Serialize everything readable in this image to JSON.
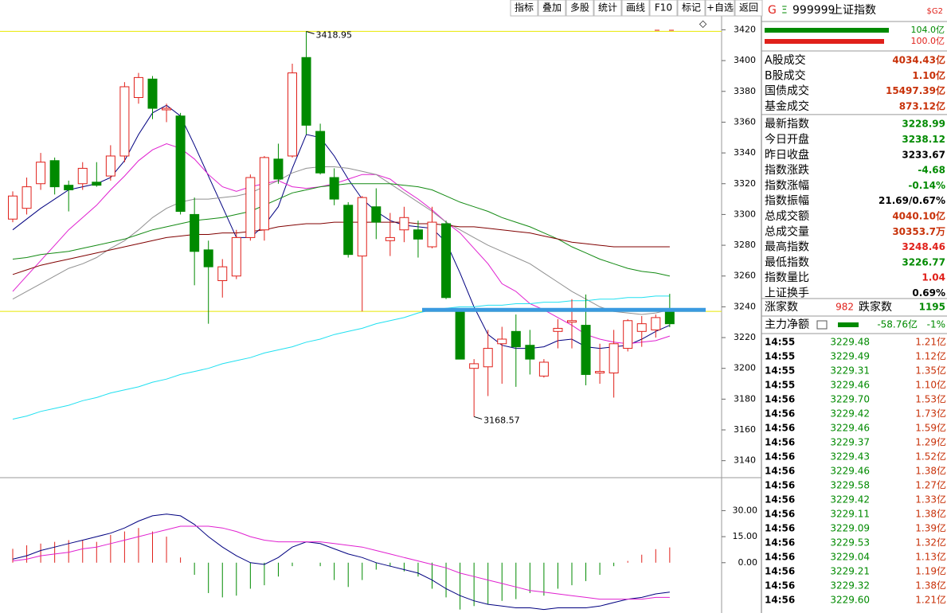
{
  "toolbar": [
    "指标",
    "叠加",
    "多股",
    "统计",
    "画线",
    "F10",
    "标记",
    "+自选",
    "返回"
  ],
  "chart_data": [
    {
      "type": "candlestick",
      "up_color": "#e0201a",
      "down_color": "#008a00",
      "categories": [
        null,
        null,
        null,
        null,
        null,
        null,
        null,
        null,
        null,
        null,
        null,
        null,
        null,
        null,
        null,
        null,
        null,
        null,
        null,
        null,
        null,
        null,
        null,
        null,
        null,
        null,
        null,
        null,
        null,
        null,
        null,
        null,
        null,
        null,
        null,
        null,
        null,
        null,
        null,
        null,
        null,
        null,
        null,
        null,
        null,
        null,
        null,
        null
      ],
      "candles": [
        {
          "open": 3297,
          "high": 3315,
          "low": 3295,
          "close": 3312
        },
        {
          "open": 3304,
          "high": 3324,
          "low": 3300,
          "close": 3318
        },
        {
          "open": 3320,
          "high": 3340,
          "low": 3316,
          "close": 3334
        },
        {
          "open": 3335,
          "high": 3337,
          "low": 3313,
          "close": 3318
        },
        {
          "open": 3319,
          "high": 3322,
          "low": 3302,
          "close": 3316
        },
        {
          "open": 3320,
          "high": 3334,
          "low": 3316,
          "close": 3330
        },
        {
          "open": 3321,
          "high": 3334,
          "low": 3318,
          "close": 3319
        },
        {
          "open": 3325,
          "high": 3345,
          "low": 3322,
          "close": 3338
        },
        {
          "open": 3338,
          "high": 3386,
          "low": 3334,
          "close": 3383
        },
        {
          "open": 3376,
          "high": 3392,
          "low": 3372,
          "close": 3389
        },
        {
          "open": 3388,
          "high": 3390,
          "low": 3362,
          "close": 3369
        },
        {
          "open": 3368,
          "high": 3372,
          "low": 3360,
          "close": 3369
        },
        {
          "open": 3364,
          "high": 3366,
          "low": 3300,
          "close": 3302
        },
        {
          "open": 3300,
          "high": 3311,
          "low": 3254,
          "close": 3276
        },
        {
          "open": 3277,
          "high": 3283,
          "low": 3229,
          "close": 3266
        },
        {
          "open": 3257,
          "high": 3271,
          "low": 3246,
          "close": 3266
        },
        {
          "open": 3260,
          "high": 3290,
          "low": 3258,
          "close": 3285
        },
        {
          "open": 3285,
          "high": 3326,
          "low": 3283,
          "close": 3324
        },
        {
          "open": 3290,
          "high": 3338,
          "low": 3283,
          "close": 3337
        },
        {
          "open": 3336,
          "high": 3346,
          "low": 3320,
          "close": 3323
        },
        {
          "open": 3338,
          "high": 3398,
          "low": 3337,
          "close": 3392
        },
        {
          "open": 3402,
          "high": 3418.95,
          "low": 3352,
          "close": 3358
        },
        {
          "open": 3354,
          "high": 3359,
          "low": 3326,
          "close": 3327
        },
        {
          "open": 3324,
          "high": 3330,
          "low": 3306,
          "close": 3310
        },
        {
          "open": 3306,
          "high": 3308,
          "low": 3272,
          "close": 3274
        },
        {
          "open": 3273,
          "high": 3312,
          "low": 3237,
          "close": 3311
        },
        {
          "open": 3305,
          "high": 3317,
          "low": 3284,
          "close": 3295
        },
        {
          "open": 3283,
          "high": 3301,
          "low": 3273,
          "close": 3285
        },
        {
          "open": 3290,
          "high": 3305,
          "low": 3282,
          "close": 3298
        },
        {
          "open": 3290,
          "high": 3296,
          "low": 3272,
          "close": 3284
        },
        {
          "open": 3279,
          "high": 3305,
          "low": 3278,
          "close": 3295
        },
        {
          "open": 3294,
          "high": 3296,
          "low": 3245,
          "close": 3246
        },
        {
          "open": 3238,
          "high": 3239,
          "low": 3206,
          "close": 3206
        },
        {
          "open": 3200,
          "high": 3206,
          "low": 3168.57,
          "close": 3203
        },
        {
          "open": 3201,
          "high": 3225,
          "low": 3182,
          "close": 3213
        },
        {
          "open": 3216,
          "high": 3227,
          "low": 3190,
          "close": 3219
        },
        {
          "open": 3224,
          "high": 3235,
          "low": 3188,
          "close": 3214
        },
        {
          "open": 3215,
          "high": 3225,
          "low": 3196,
          "close": 3206
        },
        {
          "open": 3195,
          "high": 3206,
          "low": 3194,
          "close": 3204
        },
        {
          "open": 3224,
          "high": 3232,
          "low": 3213,
          "close": 3226
        },
        {
          "open": 3230,
          "high": 3245,
          "low": 3213,
          "close": 3231
        },
        {
          "open": 3228,
          "high": 3248,
          "low": 3189,
          "close": 3196
        },
        {
          "open": 3197,
          "high": 3216,
          "low": 3190,
          "close": 3198
        },
        {
          "open": 3197,
          "high": 3225,
          "low": 3181,
          "close": 3216
        },
        {
          "open": 3213,
          "high": 3232,
          "low": 3211,
          "close": 3231
        },
        {
          "open": 3224,
          "high": 3234,
          "low": 3214,
          "close": 3229
        },
        {
          "open": 3225,
          "high": 3235,
          "low": 3220,
          "close": 3233
        },
        {
          "open": 3238.12,
          "high": 3248.46,
          "low": 3226.77,
          "close": 3228.99
        }
      ],
      "series": [
        {
          "color": "#000080",
          "values": [
            3290,
            3297,
            3304,
            3310,
            3316,
            3318,
            3320,
            3324,
            3335,
            3352,
            3366,
            3371,
            3364,
            3345,
            3325,
            3305,
            3285,
            3285,
            3293,
            3305,
            3330,
            3352,
            3350,
            3338,
            3323,
            3310,
            3302,
            3296,
            3293,
            3292,
            3291,
            3282,
            3262,
            3240,
            3222,
            3215,
            3213,
            3213,
            3214,
            3218,
            3219,
            3214,
            3213,
            3214,
            3215,
            3219,
            3224,
            3228
          ]
        },
        {
          "color": "#e020d0",
          "values": [
            3250,
            3260,
            3270,
            3280,
            3290,
            3298,
            3306,
            3316,
            3325,
            3335,
            3342,
            3346,
            3343,
            3336,
            3326,
            3318,
            3315,
            3318,
            3320,
            3322,
            3318,
            3317,
            3318,
            3320,
            3323,
            3326,
            3326,
            3323,
            3316,
            3310,
            3303,
            3295,
            3288,
            3278,
            3268,
            3255,
            3250,
            3242,
            3238,
            3233,
            3228,
            3222,
            3219,
            3217,
            3216,
            3217,
            3218,
            3221
          ]
        },
        {
          "color": "#909090",
          "values": [
            3245,
            3250,
            3255,
            3260,
            3265,
            3268,
            3272,
            3278,
            3283,
            3290,
            3298,
            3304,
            3308,
            3310,
            3310,
            3311,
            3312,
            3314,
            3318,
            3322,
            3327,
            3330,
            3331,
            3331,
            3330,
            3328,
            3326,
            3320,
            3314,
            3308,
            3302,
            3295,
            3290,
            3285,
            3280,
            3276,
            3272,
            3268,
            3262,
            3256,
            3250,
            3245,
            3240,
            3237,
            3236,
            3235,
            3236,
            3238
          ]
        },
        {
          "color": "#138a13",
          "values": [
            3271,
            3272,
            3274,
            3275,
            3276,
            3278,
            3280,
            3282,
            3284,
            3287,
            3290,
            3292,
            3294,
            3296,
            3297,
            3298,
            3300,
            3302,
            3306,
            3310,
            3314,
            3316,
            3318,
            3319,
            3320,
            3320,
            3320,
            3320,
            3319,
            3318,
            3316,
            3312,
            3308,
            3305,
            3302,
            3298,
            3295,
            3292,
            3288,
            3284,
            3279,
            3275,
            3271,
            3268,
            3265,
            3263,
            3262,
            3260
          ]
        },
        {
          "color": "#800000",
          "values": [
            3261,
            3264,
            3267,
            3269,
            3271,
            3273,
            3275,
            3277,
            3279,
            3281,
            3283,
            3285,
            3286,
            3287,
            3287,
            3288,
            3288,
            3289,
            3290,
            3292,
            3293,
            3294,
            3294,
            3295,
            3295,
            3295,
            3295,
            3295,
            3295,
            3294,
            3294,
            3293,
            3292,
            3292,
            3291,
            3290,
            3289,
            3288,
            3286,
            3284,
            3282,
            3281,
            3280,
            3279,
            3279,
            3279,
            3279,
            3279
          ]
        },
        {
          "color": "#20e0f0",
          "values": [
            3167,
            3169,
            3172,
            3174,
            3176,
            3179,
            3181,
            3184,
            3186,
            3188,
            3191,
            3193,
            3196,
            3198,
            3200,
            3203,
            3205,
            3207,
            3210,
            3212,
            3214,
            3217,
            3219,
            3222,
            3224,
            3226,
            3229,
            3231,
            3233,
            3236,
            3238,
            3239,
            3240,
            3240,
            3241,
            3241,
            3242,
            3242,
            3243,
            3243,
            3244,
            3244,
            3245,
            3245,
            3246,
            3246,
            3247,
            3247
          ]
        }
      ],
      "annotations": [
        {
          "index": 21,
          "value": 3418.95
        },
        {
          "index": 33,
          "value": 3168.57
        }
      ],
      "reference_lines": [
        {
          "value": 3419,
          "color": "#e8e800"
        },
        {
          "value": 3237,
          "color": "#e8e800"
        }
      ],
      "drawn_line": {
        "value": 3238,
        "color": "#3a9ae0"
      },
      "ylim": [
        3130,
        3428
      ],
      "yticks": [
        3140,
        3160,
        3180,
        3200,
        3220,
        3240,
        3260,
        3280,
        3300,
        3320,
        3340,
        3360,
        3380,
        3400,
        3420
      ]
    },
    {
      "type": "macd",
      "up_color": "#e0201a",
      "down_color": "#008a00",
      "values": [
        8,
        10,
        11,
        12,
        13,
        13,
        12,
        16,
        18,
        20,
        18,
        15,
        3,
        -7,
        -17.5,
        -20,
        -19,
        -15,
        -13,
        -8,
        -2,
        0,
        -2,
        -10,
        -14,
        -10,
        -4,
        -2,
        -5,
        -8,
        -15,
        -20,
        -27,
        -25,
        -24,
        -22,
        -21,
        -17.5,
        -19,
        -15,
        -13,
        -10.6,
        -7,
        -2,
        1,
        4.6,
        7.8,
        8.8
      ],
      "series": [
        {
          "color": "#000080",
          "values": [
            2,
            4,
            7,
            9,
            11,
            13,
            15,
            17,
            20,
            24,
            27,
            28,
            27,
            22,
            15,
            9,
            4,
            0,
            -1,
            3,
            9,
            12,
            11,
            8,
            5,
            3,
            0,
            -2,
            -4,
            -6,
            -10,
            -15,
            -19,
            -22,
            -24,
            -25,
            -26,
            -26,
            -27,
            -26,
            -26,
            -26,
            -25,
            -23,
            -21,
            -20,
            -18,
            -17
          ]
        },
        {
          "color": "#e020d0",
          "values": [
            1,
            2,
            4,
            5,
            6,
            8,
            9,
            11,
            13,
            15,
            17,
            19,
            21,
            21,
            21,
            20,
            18,
            15,
            13,
            12,
            12,
            12,
            12,
            11,
            10,
            9,
            7,
            5,
            3,
            1,
            -1,
            -3,
            -6,
            -8,
            -10,
            -12,
            -14,
            -16,
            -17,
            -18,
            -19,
            -20,
            -21,
            -21,
            -21,
            -21,
            -20,
            -20
          ]
        }
      ],
      "ylim": [
        -29,
        49
      ],
      "yticks": [
        {
          "value": 0,
          "label": "0.00"
        },
        {
          "value": 15,
          "label": "15.00"
        },
        {
          "value": 30,
          "label": "30.00"
        }
      ]
    }
  ],
  "quote_panel": {
    "flag": "G",
    "code": "999999",
    "name": "上证指数",
    "tag": "$G2",
    "bars": [
      {
        "value": 104.0,
        "label": "104.0亿",
        "color": "#008a00"
      },
      {
        "value": 100.0,
        "label": "100.0亿",
        "color": "#e0201a"
      }
    ],
    "rows": [
      {
        "label": "A股成交",
        "value": "4034.43亿",
        "color": "#c8320a"
      },
      {
        "label": "B股成交",
        "value": "1.10亿",
        "color": "#c8320a"
      },
      {
        "label": "国债成交",
        "value": "15497.39亿",
        "color": "#c8320a"
      },
      {
        "label": "基金成交",
        "value": "873.12亿",
        "color": "#c8320a"
      },
      {
        "label": "最新指数",
        "value": "3228.99",
        "color": "#008a00"
      },
      {
        "label": "今日开盘",
        "value": "3238.12",
        "color": "#008a00"
      },
      {
        "label": "昨日收盘",
        "value": "3233.67",
        "color": "#000000"
      },
      {
        "label": "指数涨跌",
        "value": "-4.68",
        "color": "#008a00"
      },
      {
        "label": "指数涨幅",
        "value": "-0.14%",
        "color": "#008a00"
      },
      {
        "label": "指数振幅",
        "value": "21.69/0.67%",
        "color": "#000000"
      },
      {
        "label": "总成交额",
        "value": "4040.10亿",
        "color": "#c8320a"
      },
      {
        "label": "总成交量",
        "value": "30353.7万",
        "color": "#c8320a"
      },
      {
        "label": "最高指数",
        "value": "3248.46",
        "color": "#e0201a"
      },
      {
        "label": "最低指数",
        "value": "3226.77",
        "color": "#008a00"
      },
      {
        "label": "指数量比",
        "value": "1.04",
        "color": "#e0201a"
      },
      {
        "label": "上证换手",
        "value": "0.69%",
        "color": "#000000"
      }
    ],
    "breadth": {
      "up_label": "涨家数",
      "up": 982,
      "down_label": "跌家数",
      "down": 1195
    },
    "main_flow": {
      "label": "主力净额",
      "value": "-58.76亿",
      "pct": "-1%"
    },
    "ticks": [
      [
        "14:55",
        "3229.48",
        "1.21亿"
      ],
      [
        "14:55",
        "3229.49",
        "1.12亿"
      ],
      [
        "14:55",
        "3229.31",
        "1.35亿"
      ],
      [
        "14:55",
        "3229.46",
        "1.10亿"
      ],
      [
        "14:56",
        "3229.70",
        "1.53亿"
      ],
      [
        "14:56",
        "3229.42",
        "1.73亿"
      ],
      [
        "14:56",
        "3229.46",
        "1.59亿"
      ],
      [
        "14:56",
        "3229.37",
        "1.29亿"
      ],
      [
        "14:56",
        "3229.43",
        "1.52亿"
      ],
      [
        "14:56",
        "3229.46",
        "1.38亿"
      ],
      [
        "14:56",
        "3229.58",
        "1.27亿"
      ],
      [
        "14:56",
        "3229.42",
        "1.33亿"
      ],
      [
        "14:56",
        "3229.11",
        "1.38亿"
      ],
      [
        "14:56",
        "3229.09",
        "1.39亿"
      ],
      [
        "14:56",
        "3229.53",
        "1.32亿"
      ],
      [
        "14:56",
        "3229.04",
        "1.13亿"
      ],
      [
        "14:56",
        "3229.21",
        "1.19亿"
      ],
      [
        "14:56",
        "3229.32",
        "1.38亿"
      ],
      [
        "14:56",
        "3229.60",
        "1.21亿"
      ]
    ]
  }
}
